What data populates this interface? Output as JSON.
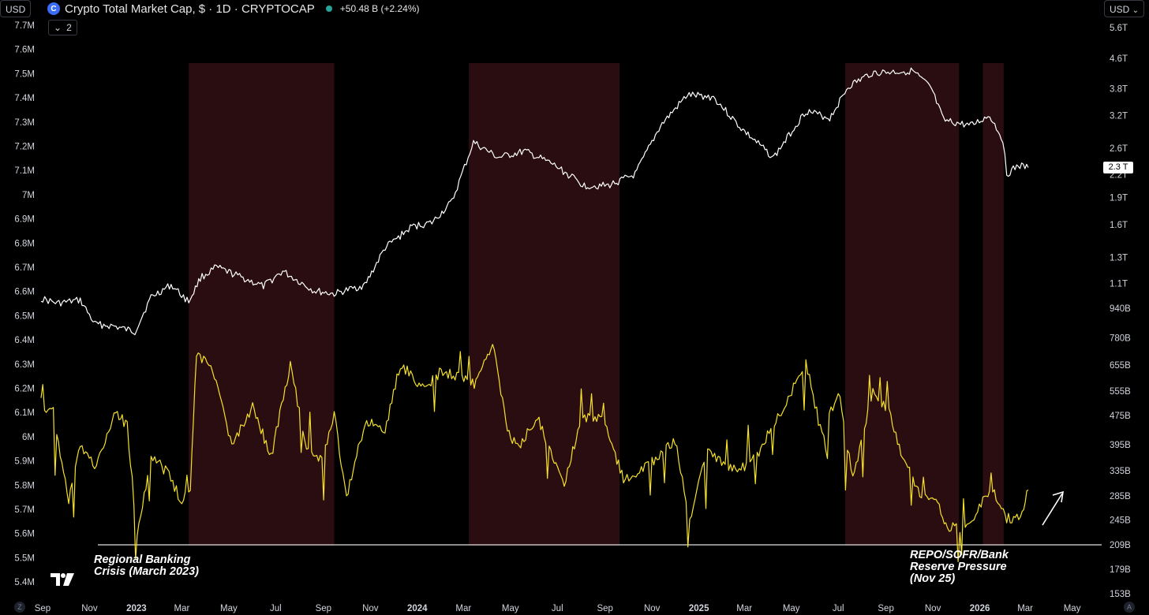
{
  "header": {
    "currency_left": "USD",
    "currency_right": "USD",
    "symbol_title": "Crypto Total Market Cap, $ · 1D · CRYPTOCAP",
    "change": "+50.48 B (+2.24%)",
    "collapse_count": "2"
  },
  "annotations": {
    "left": [
      "Regional Banking",
      "Crisis (March 2023)"
    ],
    "right": [
      "REPO/SOFR/Bank",
      "Reserve Pressure",
      "(Nov 25)"
    ]
  },
  "price_tag": "2.3 T",
  "corner_left": "Z",
  "corner_right": "A",
  "colors": {
    "background": "#000000",
    "white_series": "#ffffff",
    "yellow_series": "#f5e12a",
    "shade": "#2a0d10",
    "text": "#d1d4dc",
    "logo": "#3b6cf6",
    "live_dot": "#26a69a"
  },
  "chart_data": {
    "type": "line",
    "x_axis": {
      "type": "date",
      "ticks": [
        "Sep",
        "Nov",
        "2023",
        "Mar",
        "May",
        "Jul",
        "Sep",
        "Nov",
        "2024",
        "Mar",
        "May",
        "Jul",
        "Sep",
        "Nov",
        "2025",
        "Mar",
        "May",
        "Jul",
        "Sep",
        "Nov",
        "2026",
        "Mar",
        "May"
      ],
      "tick_dates": [
        "2022-09-01",
        "2022-11-01",
        "2023-01-01",
        "2023-03-01",
        "2023-05-01",
        "2023-07-01",
        "2023-09-01",
        "2023-11-01",
        "2024-01-01",
        "2024-03-01",
        "2024-05-01",
        "2024-07-01",
        "2024-09-01",
        "2024-11-01",
        "2025-01-01",
        "2025-03-01",
        "2025-05-01",
        "2025-07-01",
        "2025-09-01",
        "2025-11-01",
        "2026-01-01",
        "2026-03-01",
        "2026-05-01"
      ],
      "range": [
        "2022-08-30",
        "2026-05-25"
      ]
    },
    "left_axis": {
      "ticks": [
        "7.7M",
        "7.6M",
        "7.5M",
        "7.4M",
        "7.3M",
        "7.2M",
        "7.1M",
        "7M",
        "6.9M",
        "6.8M",
        "6.7M",
        "6.6M",
        "6.5M",
        "6.4M",
        "6.3M",
        "6.2M",
        "6.1M",
        "6M",
        "5.9M",
        "5.8M",
        "5.7M",
        "5.6M",
        "5.5M",
        "5.4M"
      ],
      "range": [
        5.37,
        7.72
      ]
    },
    "right_axis": {
      "scale": "log",
      "ticks": [
        "5.6T",
        "4.6T",
        "3.8T",
        "3.2T",
        "2.6T",
        "2.2T",
        "1.9T",
        "1.6T",
        "1.3T",
        "1.1T",
        "940B",
        "780B",
        "655B",
        "555B",
        "475B",
        "395B",
        "335B",
        "285B",
        "245B",
        "209B",
        "179B",
        "153B"
      ]
    },
    "shaded_regions": [
      [
        "2023-03-10",
        "2023-09-15"
      ],
      [
        "2024-03-08",
        "2024-09-20"
      ],
      [
        "2025-07-10",
        "2025-12-05"
      ],
      [
        "2026-01-05",
        "2026-02-01"
      ]
    ],
    "reference_line": {
      "axis": "right",
      "value": "209B"
    },
    "series": [
      {
        "color": "#ffffff",
        "axis": "right",
        "points": [
          [
            "2022-08-30",
            1.0
          ],
          [
            "2022-09-20",
            0.97
          ],
          [
            "2022-10-20",
            0.99
          ],
          [
            "2022-11-08",
            0.85
          ],
          [
            "2022-12-01",
            0.84
          ],
          [
            "2022-12-30",
            0.81
          ],
          [
            "2023-01-20",
            1.01
          ],
          [
            "2023-02-15",
            1.09
          ],
          [
            "2023-03-10",
            0.98
          ],
          [
            "2023-03-25",
            1.14
          ],
          [
            "2023-04-15",
            1.22
          ],
          [
            "2023-05-15",
            1.15
          ],
          [
            "2023-06-15",
            1.08
          ],
          [
            "2023-07-10",
            1.19
          ],
          [
            "2023-08-20",
            1.05
          ],
          [
            "2023-09-15",
            1.03
          ],
          [
            "2023-10-25",
            1.09
          ],
          [
            "2023-11-20",
            1.38
          ],
          [
            "2023-12-25",
            1.58
          ],
          [
            "2024-01-20",
            1.62
          ],
          [
            "2024-02-15",
            1.85
          ],
          [
            "2024-03-14",
            2.7
          ],
          [
            "2024-04-15",
            2.45
          ],
          [
            "2024-05-20",
            2.55
          ],
          [
            "2024-06-25",
            2.35
          ],
          [
            "2024-08-05",
            2.05
          ],
          [
            "2024-09-05",
            2.05
          ],
          [
            "2024-10-10",
            2.2
          ],
          [
            "2024-11-12",
            3.0
          ],
          [
            "2024-12-17",
            3.65
          ],
          [
            "2025-01-20",
            3.6
          ],
          [
            "2025-02-25",
            2.95
          ],
          [
            "2025-04-08",
            2.45
          ],
          [
            "2025-05-20",
            3.3
          ],
          [
            "2025-06-20",
            3.15
          ],
          [
            "2025-07-14",
            3.85
          ],
          [
            "2025-08-14",
            4.2
          ],
          [
            "2025-10-06",
            4.25
          ],
          [
            "2025-10-30",
            3.8
          ],
          [
            "2025-11-15",
            3.1
          ],
          [
            "2025-12-20",
            3.0
          ],
          [
            "2026-01-14",
            3.2
          ],
          [
            "2026-01-31",
            2.75
          ],
          [
            "2026-02-05",
            2.2
          ],
          [
            "2026-02-20",
            2.33
          ],
          [
            "2026-03-05",
            2.3
          ]
        ]
      },
      {
        "color": "#f5e12a",
        "axis": "left",
        "points": [
          [
            "2022-08-30",
            6.14
          ],
          [
            "2022-09-15",
            6.1
          ],
          [
            "2022-10-05",
            5.74
          ],
          [
            "2022-10-20",
            5.96
          ],
          [
            "2022-11-10",
            5.88
          ],
          [
            "2022-12-05",
            6.1
          ],
          [
            "2022-12-20",
            6.05
          ],
          [
            "2023-01-02",
            5.58
          ],
          [
            "2023-01-20",
            5.92
          ],
          [
            "2023-02-10",
            5.85
          ],
          [
            "2023-03-01",
            5.73
          ],
          [
            "2023-03-12",
            5.8
          ],
          [
            "2023-03-20",
            6.34
          ],
          [
            "2023-04-10",
            6.28
          ],
          [
            "2023-05-05",
            5.96
          ],
          [
            "2023-06-01",
            6.12
          ],
          [
            "2023-06-25",
            5.92
          ],
          [
            "2023-07-20",
            6.29
          ],
          [
            "2023-08-10",
            5.96
          ],
          [
            "2023-08-30",
            5.9
          ],
          [
            "2023-09-15",
            6.1
          ],
          [
            "2023-10-01",
            5.75
          ],
          [
            "2023-10-25",
            6.06
          ],
          [
            "2023-11-20",
            6.03
          ],
          [
            "2023-12-10",
            6.3
          ],
          [
            "2024-01-10",
            6.2
          ],
          [
            "2024-02-01",
            6.27
          ],
          [
            "2024-03-15",
            6.22
          ],
          [
            "2024-04-10",
            6.38
          ],
          [
            "2024-04-25",
            6.05
          ],
          [
            "2024-05-10",
            5.95
          ],
          [
            "2024-06-05",
            6.08
          ],
          [
            "2024-07-10",
            5.8
          ],
          [
            "2024-08-01",
            6.08
          ],
          [
            "2024-08-30",
            6.07
          ],
          [
            "2024-09-25",
            5.82
          ],
          [
            "2024-11-01",
            5.9
          ],
          [
            "2024-12-01",
            5.98
          ],
          [
            "2024-12-20",
            5.65
          ],
          [
            "2025-01-10",
            5.95
          ],
          [
            "2025-02-20",
            5.85
          ],
          [
            "2025-03-20",
            5.94
          ],
          [
            "2025-04-20",
            6.12
          ],
          [
            "2025-05-20",
            6.31
          ],
          [
            "2025-06-10",
            6.0
          ],
          [
            "2025-07-01",
            6.19
          ],
          [
            "2025-07-20",
            5.82
          ],
          [
            "2025-08-15",
            6.2
          ],
          [
            "2025-09-05",
            6.1
          ],
          [
            "2025-09-25",
            5.9
          ],
          [
            "2025-10-15",
            5.76
          ],
          [
            "2025-11-05",
            5.75
          ],
          [
            "2025-11-20",
            5.62
          ],
          [
            "2025-12-20",
            5.63
          ],
          [
            "2026-01-05",
            5.73
          ],
          [
            "2026-01-20",
            5.77
          ],
          [
            "2026-02-05",
            5.66
          ],
          [
            "2026-02-25",
            5.68
          ],
          [
            "2026-03-05",
            5.78
          ]
        ]
      }
    ]
  }
}
